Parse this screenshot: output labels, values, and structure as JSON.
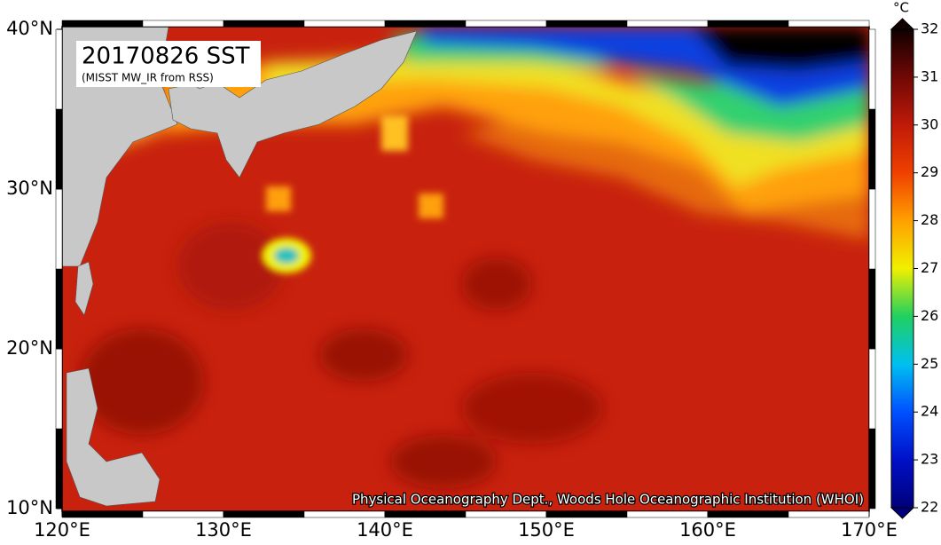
{
  "map": {
    "title": "20170826 SST",
    "subtitle": "(MISST MW_IR from RSS)",
    "credit": "Physical Oceanography Dept., Woods Hole Oceanographic Institution (WHOI)",
    "lonlim": [
      120,
      170
    ],
    "latlim": [
      10,
      40
    ],
    "lon_ticks": [
      {
        "value": 120,
        "label": "120°E"
      },
      {
        "value": 130,
        "label": "130°E"
      },
      {
        "value": 140,
        "label": "140°E"
      },
      {
        "value": 150,
        "label": "150°E"
      },
      {
        "value": 160,
        "label": "160°E"
      },
      {
        "value": 170,
        "label": "170°E"
      }
    ],
    "lat_ticks": [
      {
        "value": 10,
        "label": "10°N"
      },
      {
        "value": 20,
        "label": "20°N"
      },
      {
        "value": 30,
        "label": "30°N"
      },
      {
        "value": 40,
        "label": "40°N"
      }
    ],
    "colorbar": {
      "unit": "°C",
      "lim": [
        22,
        32
      ],
      "ticks": [
        22,
        23,
        24,
        25,
        26,
        27,
        28,
        29,
        30,
        31,
        32
      ]
    }
  }
}
